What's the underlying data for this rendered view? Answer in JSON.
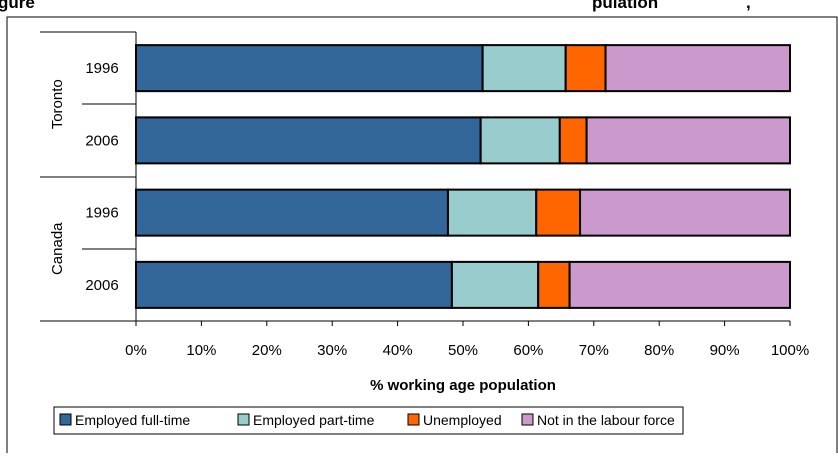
{
  "header": {
    "title_fragment_left": "gure",
    "title_fragment_right": "pulation",
    "title_fragment_end": ","
  },
  "chart_data": {
    "type": "bar",
    "orientation": "horizontal",
    "stacked": true,
    "groups": [
      {
        "name": "Toronto",
        "categories": [
          "1996",
          "2006"
        ]
      },
      {
        "name": "Canada",
        "categories": [
          "1996",
          "2006"
        ]
      }
    ],
    "categories": [
      "Toronto 1996",
      "Toronto 2006",
      "Canada 1996",
      "Canada 2006"
    ],
    "category_labels": [
      "1996",
      "2006",
      "1996",
      "2006"
    ],
    "series": [
      {
        "name": "Employed full-time",
        "color": "#336699",
        "values": [
          53,
          52.7,
          47.7,
          48.3
        ]
      },
      {
        "name": "Employed part-time",
        "color": "#99CCCC",
        "values": [
          12.7,
          12.1,
          13.5,
          13.2
        ]
      },
      {
        "name": "Unemployed",
        "color": "#FF6600",
        "values": [
          6.1,
          4.1,
          6.7,
          4.8
        ]
      },
      {
        "name": "Not in the labour force",
        "color": "#CC99CC",
        "values": [
          28.2,
          31.1,
          32.1,
          33.7
        ]
      }
    ],
    "xlim": [
      0,
      100
    ],
    "xticks": [
      "0%",
      "10%",
      "20%",
      "30%",
      "40%",
      "50%",
      "60%",
      "70%",
      "80%",
      "90%",
      "100%"
    ],
    "xlabel": "% working age population",
    "ylabel": "",
    "grid": false,
    "legend_position": "bottom-left"
  }
}
